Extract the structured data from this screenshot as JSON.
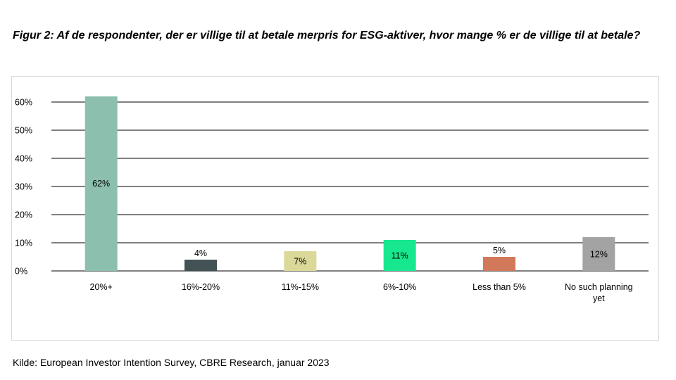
{
  "title": "Figur 2:  Af de respondenter, der er villige til at betale merpris for ESG-aktiver, hvor mange % er de villige til at betale?",
  "source": "Kilde: European Investor Intention Survey, CBRE Research, januar 2023",
  "chart_data": {
    "type": "bar",
    "categories": [
      "20%+",
      "16%-20%",
      "11%-15%",
      "6%-10%",
      "Less than 5%",
      "No such planning yet"
    ],
    "values": [
      62,
      4,
      7,
      11,
      5,
      12
    ],
    "data_labels": [
      "62%",
      "4%",
      "7%",
      "11%",
      "5%",
      "12%"
    ],
    "colors": [
      "#8cbfae",
      "#435254",
      "#dbd99a",
      "#17e88f",
      "#d2785b",
      "#a3a3a3"
    ],
    "ylim": [
      0,
      60
    ],
    "yticks": [
      0,
      10,
      20,
      30,
      40,
      50,
      60
    ],
    "ytick_labels": [
      "0%",
      "10%",
      "20%",
      "30%",
      "40%",
      "50%",
      "60%"
    ],
    "grid": true,
    "xlabel": "",
    "ylabel": ""
  }
}
